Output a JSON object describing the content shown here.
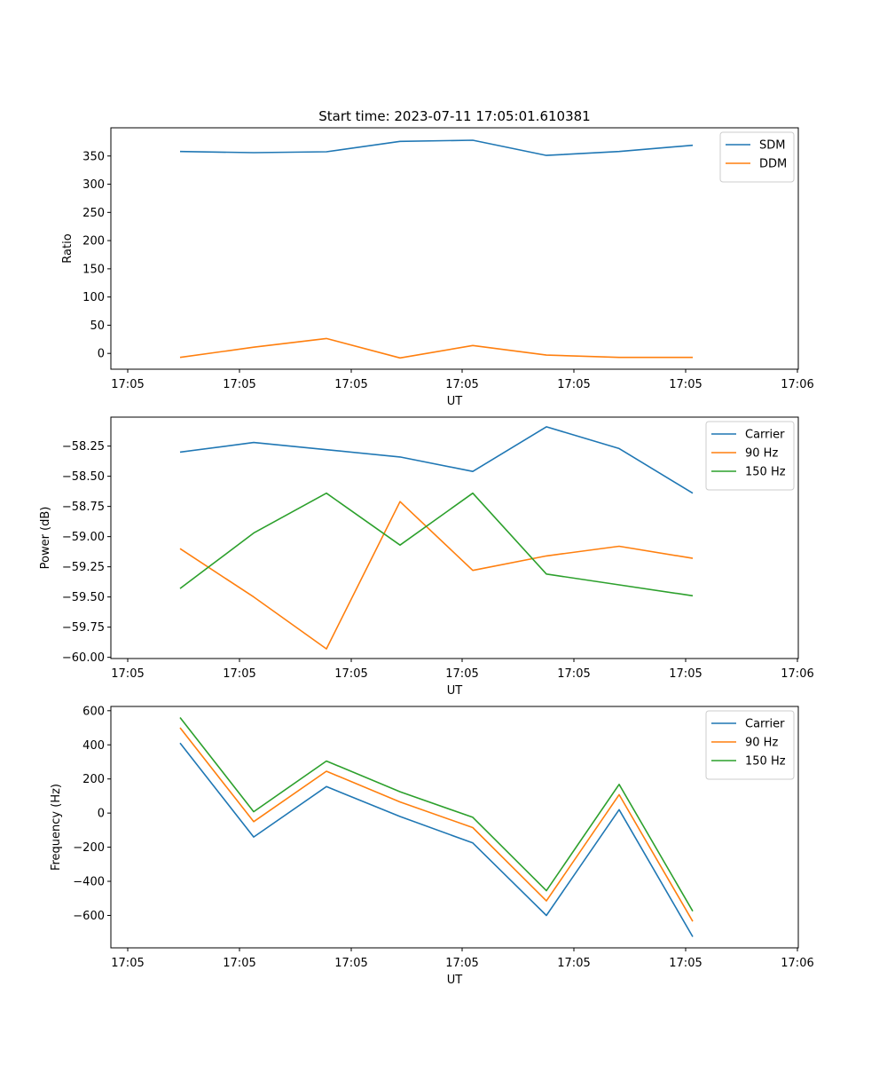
{
  "title": "Start time: 2023-07-11 17:05:01.610381",
  "chart_data": [
    {
      "type": "line",
      "xlabel": "UT",
      "ylabel": "Ratio",
      "x_tick_labels": [
        "17:05",
        "17:05",
        "17:05",
        "17:05",
        "17:05",
        "17:05",
        "17:05",
        "17:06"
      ],
      "ylim": [
        -28,
        400
      ],
      "y_ticks": [
        0,
        50,
        100,
        150,
        200,
        250,
        300,
        350
      ],
      "legend_position": "top-right",
      "series": [
        {
          "name": "SDM",
          "color": "#1f77b4",
          "values": [
            358,
            356,
            357.5,
            376,
            378,
            351,
            358,
            369
          ]
        },
        {
          "name": "DDM",
          "color": "#ff7f0e",
          "values": [
            -7,
            11,
            26.5,
            -8,
            14,
            -3,
            -7,
            -7
          ]
        }
      ]
    },
    {
      "type": "line",
      "xlabel": "UT",
      "ylabel": "Power (dB)",
      "x_tick_labels": [
        "17:05",
        "17:05",
        "17:05",
        "17:05",
        "17:05",
        "17:05",
        "17:05",
        "17:06"
      ],
      "ylim": [
        -60.01,
        -58.01
      ],
      "y_ticks": [
        -60.0,
        -59.75,
        -59.5,
        -59.25,
        -59.0,
        -58.75,
        -58.5,
        -58.25
      ],
      "y_tick_labels": [
        "−60.00",
        "−59.75",
        "−59.50",
        "−59.25",
        "−59.00",
        "−58.75",
        "−58.50",
        "−58.25"
      ],
      "legend_position": "top-right",
      "series": [
        {
          "name": "Carrier",
          "color": "#1f77b4",
          "values": [
            -58.3,
            -58.22,
            -58.28,
            -58.34,
            -58.46,
            -58.09,
            -58.27,
            -58.64
          ]
        },
        {
          "name": "90 Hz",
          "color": "#ff7f0e",
          "values": [
            -59.1,
            -59.5,
            -59.93,
            -58.71,
            -59.28,
            -59.16,
            -59.08,
            -59.18
          ]
        },
        {
          "name": "150 Hz",
          "color": "#2ca02c",
          "values": [
            -59.43,
            -58.97,
            -58.64,
            -59.07,
            -58.64,
            -59.31,
            -59.4,
            -59.49
          ]
        }
      ]
    },
    {
      "type": "line",
      "xlabel": "UT",
      "ylabel": "Frequency (Hz)",
      "x_tick_labels": [
        "17:05",
        "17:05",
        "17:05",
        "17:05",
        "17:05",
        "17:05",
        "17:05",
        "17:06"
      ],
      "ylim": [
        -790,
        625
      ],
      "y_ticks": [
        -600,
        -400,
        -200,
        0,
        200,
        400,
        600
      ],
      "y_tick_labels": [
        "−600",
        "−400",
        "−200",
        "0",
        "200",
        "400",
        "600"
      ],
      "legend_position": "top-right",
      "series": [
        {
          "name": "Carrier",
          "color": "#1f77b4",
          "values": [
            410,
            -140,
            155,
            -20,
            -175,
            -600,
            20,
            -725
          ]
        },
        {
          "name": "90 Hz",
          "color": "#ff7f0e",
          "values": [
            500,
            -50,
            245,
            65,
            -85,
            -515,
            108,
            -635
          ]
        },
        {
          "name": "150 Hz",
          "color": "#2ca02c",
          "values": [
            560,
            8,
            305,
            125,
            -25,
            -455,
            168,
            -575
          ]
        }
      ]
    }
  ]
}
